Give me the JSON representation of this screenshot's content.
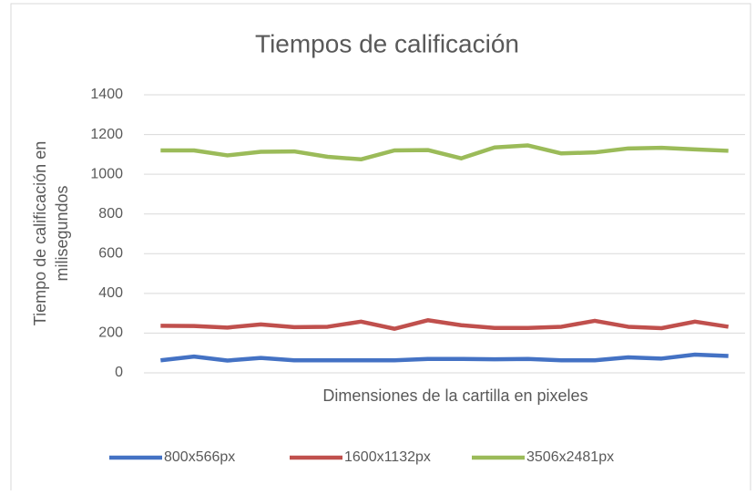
{
  "chart_data": {
    "type": "line",
    "title": "Tiempos de calificación",
    "ylabel": [
      "Tiempo de calificación en",
      "milisegundos"
    ],
    "xlabel": "Dimensiones de la cartilla en pixeles",
    "categories": [
      null,
      null,
      null,
      null,
      null,
      null,
      null,
      null,
      null,
      null,
      null,
      null,
      null,
      null,
      null,
      null,
      null,
      null
    ],
    "series": [
      {
        "name": "800x566px",
        "color": "#4472c4",
        "values": [
          63,
          82,
          62,
          75,
          63,
          63,
          63,
          63,
          70,
          70,
          68,
          70,
          63,
          63,
          78,
          72,
          92,
          85
        ]
      },
      {
        "name": "1600x1132px",
        "color": "#c0504d",
        "values": [
          237,
          236,
          228,
          244,
          230,
          232,
          258,
          222,
          265,
          240,
          226,
          226,
          232,
          262,
          232,
          225,
          258,
          232
        ]
      },
      {
        "name": "3506x2481px",
        "color": "#9bbb59",
        "values": [
          1120,
          1120,
          1095,
          1113,
          1115,
          1088,
          1075,
          1120,
          1122,
          1080,
          1135,
          1145,
          1105,
          1110,
          1130,
          1133,
          1125,
          1118
        ]
      }
    ],
    "ylim": [
      0,
      1400
    ],
    "yticks": [
      0,
      200,
      400,
      600,
      800,
      1000,
      1200,
      1400
    ],
    "grid": true,
    "legend": "bottom"
  }
}
